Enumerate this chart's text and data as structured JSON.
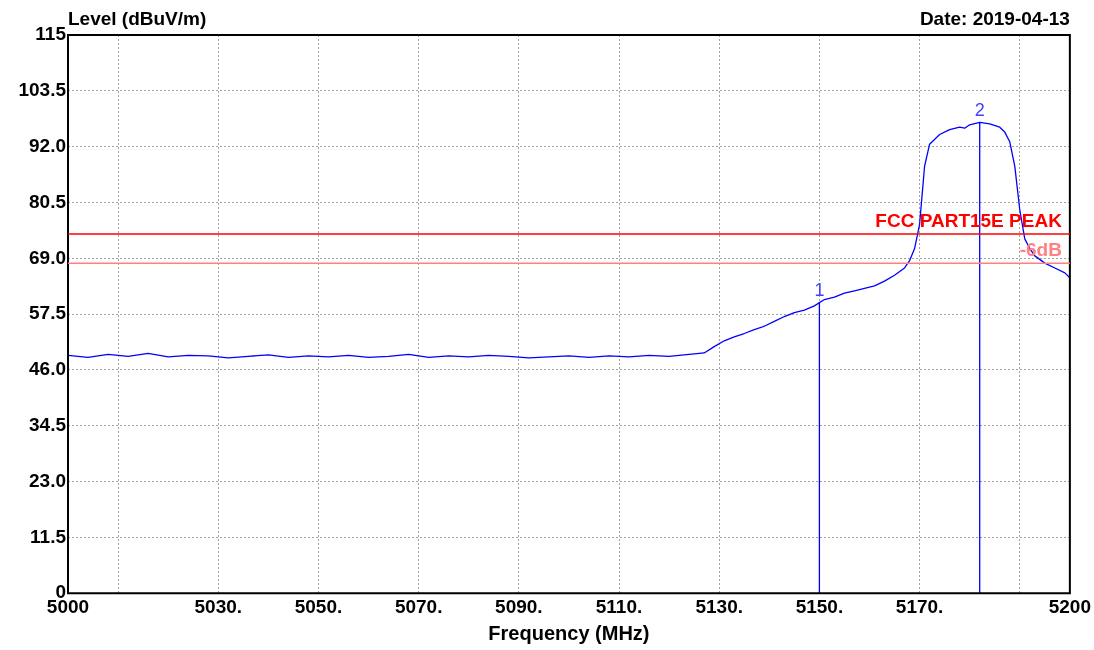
{
  "chart_data": {
    "type": "line",
    "xlabel": "Frequency (MHz)",
    "ylabel": "Level (dBuV/m)",
    "annotations": [
      "Date: 2019-04-13",
      {
        "text": "1",
        "x": 5150,
        "y": 60
      },
      {
        "text": "2",
        "x": 5182,
        "y": 97
      }
    ],
    "xlim": [
      5000,
      5200
    ],
    "xticks": [
      5000,
      {
        "value": 5010,
        "label": null
      },
      {
        "value": 5030,
        "label": "5030."
      },
      {
        "value": 5050,
        "label": "5050."
      },
      {
        "value": 5070,
        "label": "5070."
      },
      {
        "value": 5090,
        "label": "5090."
      },
      {
        "value": 5110,
        "label": "5110."
      },
      {
        "value": 5130,
        "label": "5130."
      },
      {
        "value": 5150,
        "label": "5150."
      },
      {
        "value": 5170,
        "label": "5170."
      },
      {
        "value": 5190,
        "label": null
      },
      5200
    ],
    "ylim": [
      0,
      115
    ],
    "yticks": [
      0,
      11.5,
      {
        "value": 23,
        "label": "23.0"
      },
      34.5,
      {
        "value": 46,
        "label": "46.0"
      },
      57.5,
      {
        "value": 69,
        "label": "69.0"
      },
      80.5,
      {
        "value": 92,
        "label": "92.0"
      },
      103.5,
      115
    ],
    "grid": true,
    "legend": false,
    "marker": "none",
    "line_style": "solid",
    "ref_lines": [
      {
        "axis": "y",
        "value": 74,
        "label": "FCC PART15E PEAK",
        "color": "#ff0000"
      },
      {
        "axis": "y",
        "value": 68,
        "label": "-6dB",
        "color": "#ff8080"
      }
    ],
    "series": [
      {
        "type": "line",
        "color": "#0000ff",
        "x": [
          5150,
          5150
        ],
        "values": [
          0,
          60
        ]
      },
      {
        "type": "line",
        "color": "#0000ff",
        "x": [
          5182,
          5182
        ],
        "values": [
          0,
          97
        ]
      },
      {
        "color": "#0000ff",
        "x": [
          5000,
          5004,
          5008,
          5012,
          5016,
          5020,
          5024,
          5028,
          5032,
          5036,
          5040,
          5044,
          5048,
          5052,
          5056,
          5060,
          5064,
          5068,
          5072,
          5076,
          5080,
          5084,
          5088,
          5092,
          5096,
          5100,
          5104,
          5108,
          5112,
          5116,
          5120,
          5124,
          5127,
          5129,
          5131,
          5133,
          5135,
          5137,
          5139,
          5141,
          5143,
          5145,
          5147,
          5149,
          5151,
          5153,
          5155,
          5157,
          5159,
          5161,
          5163,
          5165,
          5167,
          5168,
          5169,
          5170,
          5171,
          5172,
          5174,
          5176,
          5178,
          5179,
          5180,
          5182,
          5184,
          5186,
          5187,
          5188,
          5189,
          5190,
          5191,
          5192,
          5193,
          5195,
          5197,
          5199,
          5200
        ],
        "values": [
          49,
          48.6,
          49.2,
          48.8,
          49.4,
          48.7,
          49,
          48.9,
          48.5,
          48.8,
          49.1,
          48.6,
          48.9,
          48.7,
          49,
          48.6,
          48.8,
          49.2,
          48.6,
          48.9,
          48.7,
          49,
          48.8,
          48.5,
          48.7,
          48.9,
          48.6,
          48.9,
          48.7,
          49,
          48.8,
          49.2,
          49.5,
          50.8,
          52,
          52.8,
          53.5,
          54.3,
          55,
          56,
          57,
          57.8,
          58.3,
          59.2,
          60.5,
          61,
          61.8,
          62.3,
          62.8,
          63.3,
          64.3,
          65.5,
          67,
          68.5,
          71,
          76,
          88,
          92.5,
          94.5,
          95.5,
          96,
          95.8,
          96.5,
          97,
          96.7,
          96,
          95,
          93,
          88,
          79,
          73,
          71,
          69.5,
          68,
          67,
          66,
          65
        ]
      }
    ]
  }
}
